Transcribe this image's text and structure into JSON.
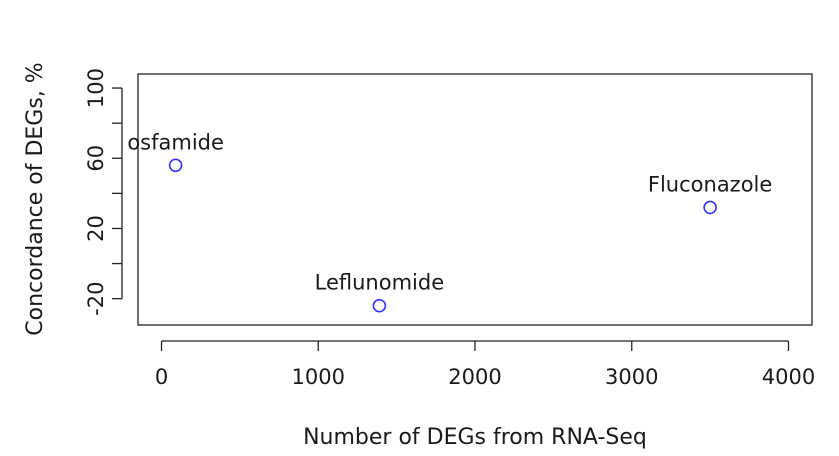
{
  "chart_data": {
    "type": "scatter",
    "title": "",
    "xlabel": "Number of DEGs from RNA-Seq",
    "ylabel": "Concordance of DEGs, %",
    "xlim": [
      -150,
      4150
    ],
    "ylim": [
      -35,
      108
    ],
    "x_ticks": [
      0,
      1000,
      2000,
      3000,
      4000
    ],
    "x_tick_labels": [
      "0",
      "1000",
      "2000",
      "3000",
      "4000"
    ],
    "y_ticks": [
      -20,
      0,
      20,
      40,
      60,
      80,
      100
    ],
    "y_tick_labels": [
      "-20",
      "",
      "20",
      "",
      "60",
      "",
      "100"
    ],
    "grid": false,
    "marker_color": "#3333ff",
    "points": [
      {
        "label": "osfamide",
        "x": 90,
        "y": 56
      },
      {
        "label": "Leflunomide",
        "x": 1390,
        "y": -24
      },
      {
        "label": "Fluconazole",
        "x": 3500,
        "y": 32
      }
    ]
  }
}
